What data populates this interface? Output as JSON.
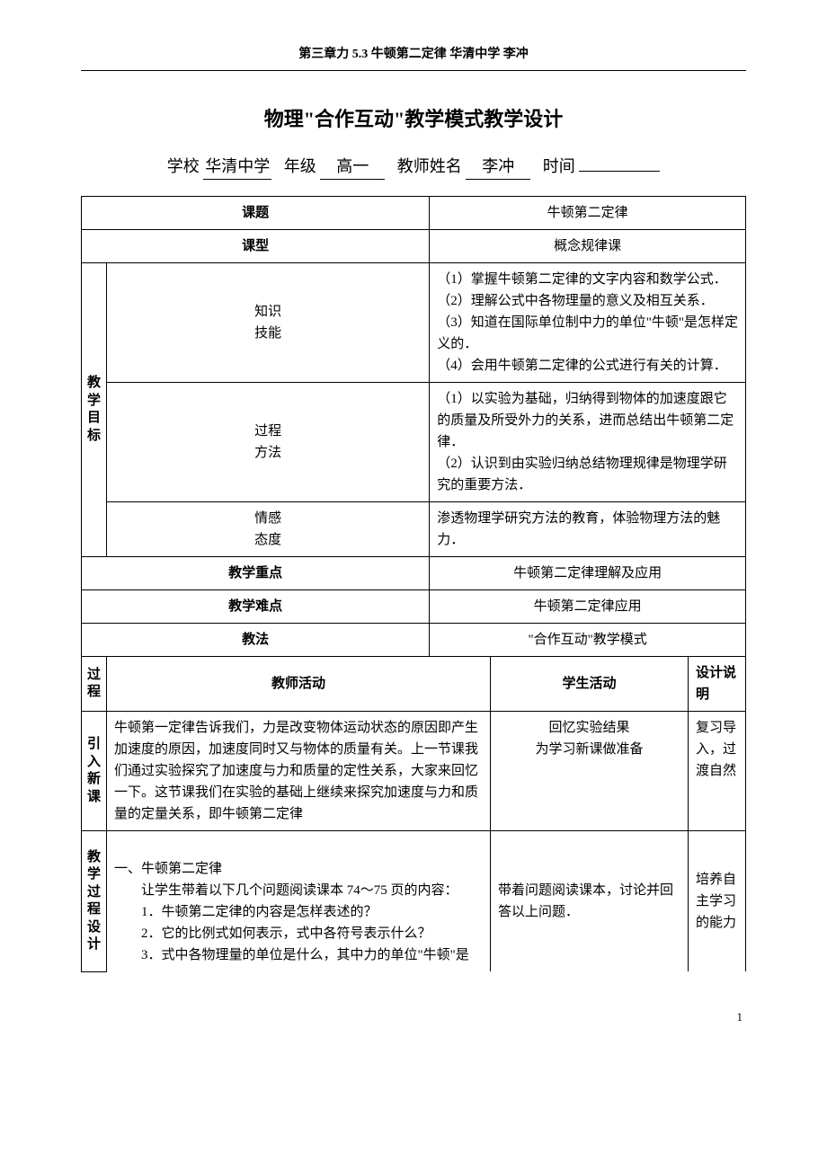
{
  "header": "第三章力  5.3 牛顿第二定律   华清中学   李冲",
  "title": "物理\"合作互动\"教学模式教学设计",
  "form": {
    "labels": {
      "school": "学校",
      "grade": "年级",
      "teacher": "教师姓名",
      "time": "时间"
    },
    "values": {
      "school": "华清中学",
      "grade": "高一",
      "teacher": "李冲",
      "time": ""
    }
  },
  "labels": {
    "topic": "课题",
    "type": "课型",
    "objectives": "教学目标",
    "knowledge": "知识技能",
    "process": "过程方法",
    "attitude": "情感态度",
    "keypoint": "教学重点",
    "difficulty": "教学难点",
    "method": "教法",
    "stage": "过程",
    "teacher_act": "教师活动",
    "student_act": "学生活动",
    "design_note": "设计说明",
    "intro": "引入新课",
    "process_design": "教学过程设计"
  },
  "topic": "牛顿第二定律",
  "type": "概念规律课",
  "knowledge": "（1）掌握牛顿第二定律的文字内容和数学公式．\n（2）理解公式中各物理量的意义及相互关系．\n（3）知道在国际单位制中力的单位\"牛顿\"是怎样定义的．\n（4）会用牛顿第二定律的公式进行有关的计算．",
  "process_method": "（1）以实验为基础，归纳得到物体的加速度跟它的质量及所受外力的关系，进而总结出牛顿第二定律．\n（2）认识到由实验归纳总结物理规律是物理学研究的重要方法．",
  "attitude": "渗透物理学研究方法的教育，体验物理方法的魅力．",
  "keypoint": "牛顿第二定律理解及应用",
  "difficulty": "牛顿第二定律应用",
  "method": "\"合作互动\"教学模式",
  "intro_teacher": "牛顿第一定律告诉我们，力是改变物体运动状态的原因即产生加速度的原因，加速度同时又与物体的质量有关。上一节课我们通过实验探究了加速度与力和质量的定性关系，大家来回忆一下。这节课我们在实验的基础上继续来探究加速度与力和质量的定量关系，即牛顿第二定律",
  "intro_student_l1": "回忆实验结果",
  "intro_student_l2": "为学习新课做准备",
  "intro_note": "复习导入，过渡自然",
  "pd_teacher_h": "一、牛顿第二定律",
  "pd_teacher_p1": "让学生带着以下几个问题阅读课本 74～75 页的内容：",
  "pd_teacher_q1": "1．牛顿第二定律的内容是怎样表述的？",
  "pd_teacher_q2": "2．它的比例式如何表示，式中各符号表示什么？",
  "pd_teacher_q3": "3．式中各物理量的单位是什么，其中力的单位\"牛顿\"是",
  "pd_student": "带着问题阅读课本，讨论并回答以上问题．",
  "pd_note": "培养自主学习的能力",
  "page_num": "1"
}
